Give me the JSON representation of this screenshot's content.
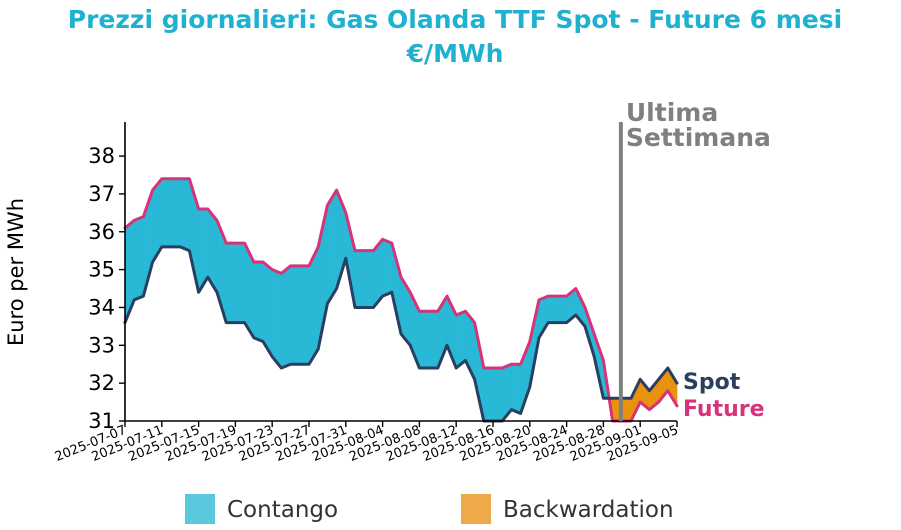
{
  "chart_data": {
    "type": "line",
    "title": "Prezzi giornalieri: Gas Olanda TTF Spot - Future 6 mesi",
    "subtitle": "€/MWh",
    "ylabel": "Euro per MWh",
    "xlabel": "",
    "ylim": [
      31,
      38.9
    ],
    "yticks": [
      31,
      32,
      33,
      34,
      35,
      36,
      37,
      38
    ],
    "xticks": [
      "2025-07-07",
      "2025-07-11",
      "2025-07-15",
      "2025-07-19",
      "2025-07-23",
      "2025-07-27",
      "2025-07-31",
      "2025-08-04",
      "2025-08-08",
      "2025-08-12",
      "2025-08-16",
      "2025-08-20",
      "2025-08-24",
      "2025-08-28",
      "2025-09-01",
      "2025-09-05"
    ],
    "x": [
      "2025-07-07",
      "2025-07-08",
      "2025-07-09",
      "2025-07-10",
      "2025-07-11",
      "2025-07-12",
      "2025-07-13",
      "2025-07-14",
      "2025-07-15",
      "2025-07-16",
      "2025-07-17",
      "2025-07-18",
      "2025-07-19",
      "2025-07-20",
      "2025-07-21",
      "2025-07-22",
      "2025-07-23",
      "2025-07-24",
      "2025-07-25",
      "2025-07-26",
      "2025-07-27",
      "2025-07-28",
      "2025-07-29",
      "2025-07-30",
      "2025-07-31",
      "2025-08-01",
      "2025-08-02",
      "2025-08-03",
      "2025-08-04",
      "2025-08-05",
      "2025-08-06",
      "2025-08-07",
      "2025-08-08",
      "2025-08-09",
      "2025-08-10",
      "2025-08-11",
      "2025-08-12",
      "2025-08-13",
      "2025-08-14",
      "2025-08-15",
      "2025-08-16",
      "2025-08-17",
      "2025-08-18",
      "2025-08-19",
      "2025-08-20",
      "2025-08-21",
      "2025-08-22",
      "2025-08-23",
      "2025-08-24",
      "2025-08-25",
      "2025-08-26",
      "2025-08-27",
      "2025-08-28",
      "2025-08-29",
      "2025-08-30",
      "2025-08-31",
      "2025-09-01",
      "2025-09-02",
      "2025-09-03",
      "2025-09-04",
      "2025-09-05"
    ],
    "series": [
      {
        "name": "Spot",
        "color": "#2a3f5f",
        "values": [
          33.6,
          34.2,
          34.3,
          35.2,
          35.6,
          35.6,
          35.6,
          35.5,
          34.4,
          34.8,
          34.4,
          33.6,
          33.6,
          33.6,
          33.2,
          33.1,
          32.7,
          32.4,
          32.5,
          32.5,
          32.5,
          32.9,
          34.1,
          34.5,
          35.3,
          34.0,
          34.0,
          34.0,
          34.3,
          34.4,
          33.3,
          33.0,
          32.4,
          32.4,
          32.4,
          33.0,
          32.4,
          32.6,
          32.1,
          31.0,
          31.0,
          31.0,
          31.3,
          31.2,
          31.9,
          33.2,
          33.6,
          33.6,
          33.6,
          33.8,
          33.5,
          32.7,
          31.6,
          31.6,
          31.6,
          31.6,
          32.1,
          31.8,
          32.1,
          32.4,
          32.0
        ]
      },
      {
        "name": "Future",
        "color": "#d6337a",
        "values": [
          36.1,
          36.3,
          36.4,
          37.1,
          37.4,
          37.4,
          37.4,
          37.4,
          36.6,
          36.6,
          36.3,
          35.7,
          35.7,
          35.7,
          35.2,
          35.2,
          35.0,
          34.9,
          35.1,
          35.1,
          35.1,
          35.6,
          36.7,
          37.1,
          36.5,
          35.5,
          35.5,
          35.5,
          35.8,
          35.7,
          34.8,
          34.4,
          33.9,
          33.9,
          33.9,
          34.3,
          33.8,
          33.9,
          33.6,
          32.4,
          32.4,
          32.4,
          32.5,
          32.5,
          33.1,
          34.2,
          34.3,
          34.3,
          34.3,
          34.5,
          34.0,
          33.3,
          32.6,
          31.0,
          31.0,
          31.0,
          31.5,
          31.3,
          31.5,
          31.8,
          31.4
        ]
      }
    ],
    "annotations": {
      "last_week_start": "2025-08-30",
      "last_week_label_line1": "Ultima",
      "last_week_label_line2": "Settimana",
      "line_color": "#808080"
    },
    "legend": {
      "placement": "bottom-center",
      "items": [
        {
          "label": "Contango",
          "color": "#5ac8dd"
        },
        {
          "label": "Backwardation",
          "color": "#eeaa48"
        }
      ]
    },
    "fill_colors": {
      "contango": "#29b8d6",
      "backwardation": "#e8920f"
    },
    "grid": false
  }
}
